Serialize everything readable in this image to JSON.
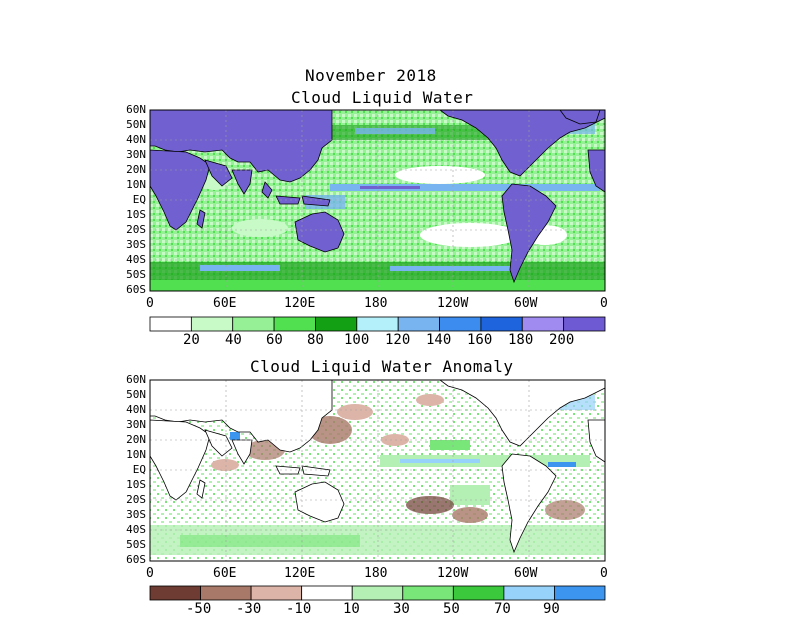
{
  "figure": {
    "title_line1": "November 2018",
    "panel1_title": "Cloud Liquid Water",
    "panel2_title": "Cloud Liquid Water Anomaly"
  },
  "axes": {
    "lat_labels": [
      "60N",
      "50N",
      "40N",
      "30N",
      "20N",
      "10N",
      "EQ",
      "10S",
      "20S",
      "30S",
      "40S",
      "50S",
      "60S"
    ],
    "lon_labels": [
      "0",
      "60E",
      "120E",
      "180",
      "120W",
      "60W",
      "0"
    ]
  },
  "colorbar1": {
    "labels": [
      "20",
      "40",
      "60",
      "80",
      "100",
      "120",
      "140",
      "160",
      "180",
      "200"
    ],
    "colors": [
      "#ffffff",
      "#c8fac8",
      "#96f096",
      "#50e050",
      "#14a014",
      "#b4f0fa",
      "#78b4f0",
      "#3c8cf0",
      "#1e64dc",
      "#a08cf0",
      "#6e5ad2"
    ]
  },
  "colorbar2": {
    "labels": [
      "-50",
      "-30",
      "-10",
      "10",
      "30",
      "50",
      "70",
      "90"
    ],
    "colors": [
      "#6e3c32",
      "#a87868",
      "#dcb4a8",
      "#ffffff",
      "#b4f0b4",
      "#78e678",
      "#3cc83c",
      "#96d2fa",
      "#3c96f0"
    ]
  },
  "map_colors": {
    "land": "#7060d0",
    "land_outline": "#000000",
    "anomaly_land": "#ffffff",
    "grid": "#a0a0a0"
  }
}
